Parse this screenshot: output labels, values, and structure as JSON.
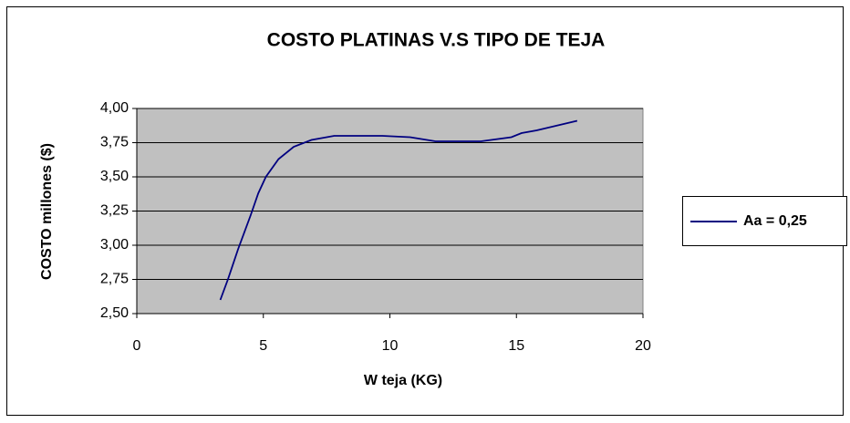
{
  "chart_data": {
    "type": "line",
    "title": "COSTO PLATINAS V.S TIPO DE TEJA",
    "x_label": "W teja (KG)",
    "y_label": "COSTO  millones ($)",
    "series": [
      {
        "name": "Aa = 0,25",
        "color": "#000080",
        "x": [
          3.3,
          3.6,
          4.0,
          4.5,
          4.8,
          5.1,
          5.6,
          6.2,
          6.9,
          7.8,
          9.7,
          10.8,
          11.8,
          13.6,
          14.8,
          15.2,
          15.8,
          17.4
        ],
        "values": [
          2.6,
          2.75,
          2.97,
          3.22,
          3.38,
          3.5,
          3.63,
          3.72,
          3.77,
          3.8,
          3.8,
          3.79,
          3.76,
          3.76,
          3.79,
          3.82,
          3.84,
          3.91
        ]
      }
    ],
    "xlim": [
      0,
      20
    ],
    "xticks": [
      0,
      5,
      10,
      15,
      20
    ],
    "ylim": [
      2.5,
      4.0
    ],
    "yticks": [
      {
        "value": 2.5,
        "label": "2,50"
      },
      {
        "value": 2.75,
        "label": "2,75"
      },
      {
        "value": 3.0,
        "label": "3,00"
      },
      {
        "value": 3.25,
        "label": "3,25"
      },
      {
        "value": 3.5,
        "label": "3,50"
      },
      {
        "value": 3.75,
        "label": "3,75"
      },
      {
        "value": 4.0,
        "label": "4,00"
      }
    ],
    "grid": true,
    "legend": "right",
    "plot_background": "#c0c0c0"
  }
}
